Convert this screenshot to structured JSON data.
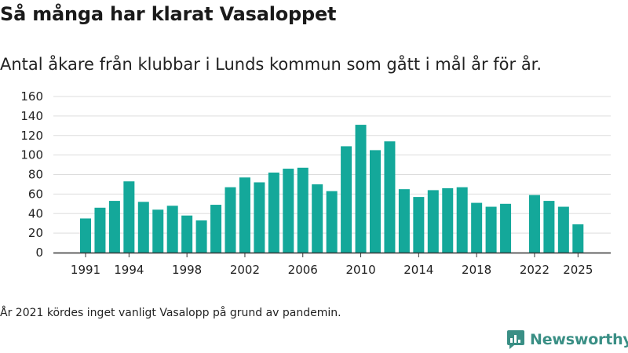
{
  "title": "Så många har klarat Vasaloppet",
  "subtitle": "Antal åkare från klubbar i Lunds kommun som gått i mål år för år.",
  "footnote": "År 2021 kördes inget vanligt Vasalopp på grund av pandemin.",
  "brand": {
    "name": "Newsworthy",
    "color": "#3a8f85"
  },
  "chart_data": {
    "type": "bar",
    "bar_color": "#14a89a",
    "categories": [
      1991,
      1992,
      1993,
      1994,
      1995,
      1996,
      1997,
      1998,
      1999,
      2000,
      2001,
      2002,
      2003,
      2004,
      2005,
      2006,
      2007,
      2008,
      2009,
      2010,
      2011,
      2012,
      2013,
      2014,
      2015,
      2016,
      2017,
      2018,
      2019,
      2020,
      2021,
      2022,
      2023,
      2024,
      2025
    ],
    "values": [
      35,
      46,
      53,
      73,
      52,
      44,
      48,
      38,
      33,
      49,
      67,
      77,
      72,
      82,
      86,
      87,
      70,
      63,
      109,
      131,
      105,
      114,
      65,
      57,
      64,
      66,
      67,
      51,
      47,
      50,
      null,
      59,
      53,
      47,
      29
    ],
    "xticks": [
      "1991",
      "1994",
      "1998",
      "2002",
      "2006",
      "2010",
      "2014",
      "2018",
      "2022",
      "2025"
    ],
    "yticks": [
      "0",
      "20",
      "40",
      "60",
      "80",
      "100",
      "120",
      "140",
      "160"
    ],
    "ylim": [
      0,
      160
    ],
    "grid": true
  }
}
